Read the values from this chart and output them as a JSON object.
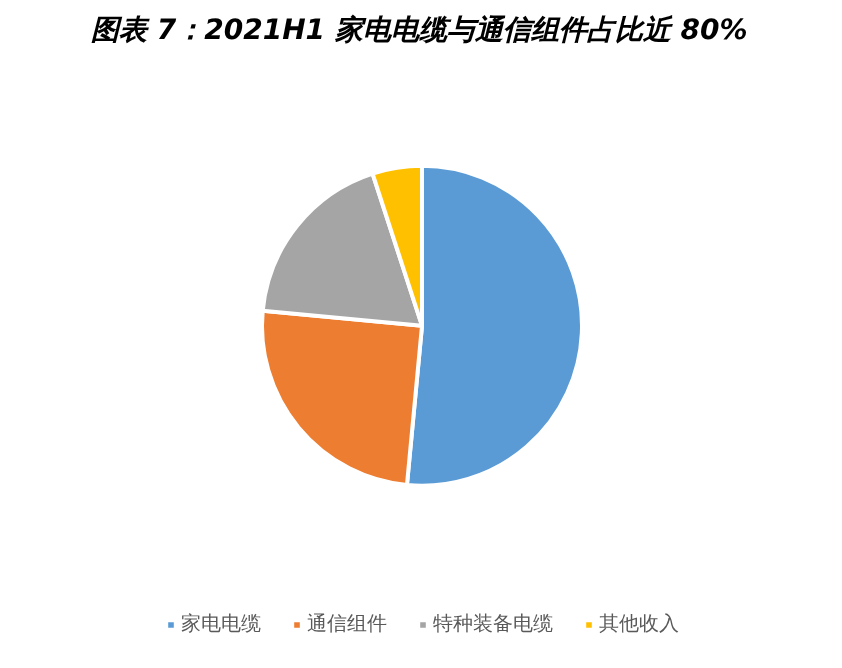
{
  "chart_data": {
    "type": "pie",
    "title": "图表 7：2021H1 家电电缆与通信组件占比近 80%",
    "categories": [
      "家电电缆",
      "通信组件",
      "特种装备电缆",
      "其他收入"
    ],
    "values": [
      51.5,
      25,
      18.5,
      5
    ],
    "colors": [
      "#5b9bd5",
      "#ed7d31",
      "#a5a5a5",
      "#ffc000"
    ],
    "legend": "bottom"
  }
}
